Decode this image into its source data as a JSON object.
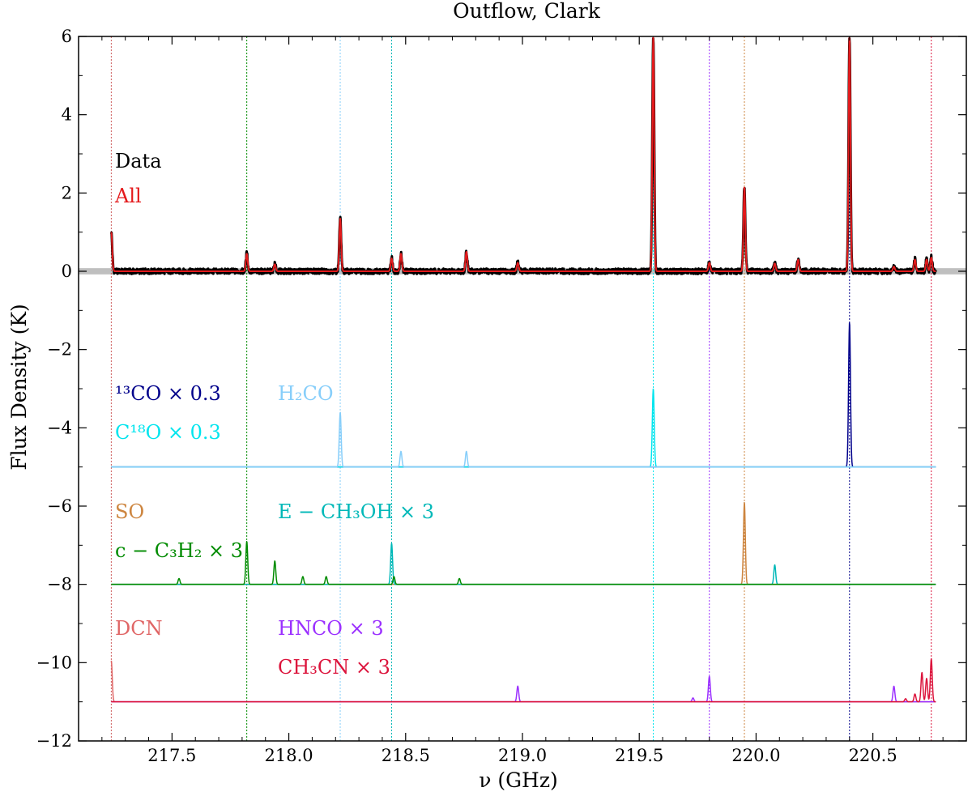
{
  "chart_data": {
    "type": "line",
    "title": "Outflow, Clark",
    "xlabel": "ν (GHz)",
    "ylabel": "Flux Density (K)",
    "xlim": [
      217.1,
      220.9
    ],
    "ylim": [
      -12,
      6
    ],
    "x_ticks": [
      "217.5",
      "218.0",
      "218.5",
      "219.0",
      "219.5",
      "220.0",
      "220.5"
    ],
    "y_ticks": [
      "6",
      "4",
      "2",
      "0",
      "−2",
      "−4",
      "−6",
      "−8",
      "−10",
      "−12"
    ],
    "grid": false,
    "noise_band": {
      "center": 0,
      "halfwidth": 0.08,
      "color": "#bfbfbf"
    },
    "series": [
      {
        "name": "Data",
        "color": "#000000",
        "offset": 0,
        "peaks": [
          [
            217.24,
            1.0
          ],
          [
            217.82,
            0.45
          ],
          [
            217.94,
            0.18
          ],
          [
            218.22,
            1.35
          ],
          [
            218.44,
            0.33
          ],
          [
            218.48,
            0.45
          ],
          [
            218.76,
            0.5
          ],
          [
            218.98,
            0.22
          ],
          [
            219.56,
            6.0
          ],
          [
            219.8,
            0.22
          ],
          [
            219.95,
            2.15
          ],
          [
            220.08,
            0.2
          ],
          [
            220.18,
            0.3
          ],
          [
            220.4,
            6.0
          ],
          [
            220.59,
            0.12
          ],
          [
            220.68,
            0.3
          ],
          [
            220.73,
            0.3
          ],
          [
            220.75,
            0.35
          ]
        ]
      },
      {
        "name": "All",
        "color": "#e41a1c",
        "offset": 0,
        "peaks": [
          [
            217.24,
            1.0
          ],
          [
            217.82,
            0.45
          ],
          [
            217.94,
            0.18
          ],
          [
            218.22,
            1.35
          ],
          [
            218.44,
            0.33
          ],
          [
            218.48,
            0.45
          ],
          [
            218.76,
            0.5
          ],
          [
            218.98,
            0.22
          ],
          [
            219.56,
            6.0
          ],
          [
            219.8,
            0.22
          ],
          [
            219.95,
            2.15
          ],
          [
            220.08,
            0.2
          ],
          [
            220.18,
            0.3
          ],
          [
            220.4,
            6.0
          ],
          [
            220.59,
            0.12
          ],
          [
            220.68,
            0.3
          ],
          [
            220.73,
            0.3
          ],
          [
            220.75,
            0.35
          ]
        ]
      },
      {
        "name": "¹³CO × 0.3",
        "color": "#00008b",
        "offset": -5,
        "peaks": [
          [
            220.4,
            3.7
          ]
        ]
      },
      {
        "name": "C¹⁸O × 0.3",
        "color": "#00e5ee",
        "offset": -5,
        "peaks": [
          [
            219.56,
            2.0
          ]
        ]
      },
      {
        "name": "H₂CO",
        "color": "#87cefa",
        "offset": -5,
        "peaks": [
          [
            218.22,
            1.4
          ],
          [
            218.48,
            0.4
          ],
          [
            218.76,
            0.4
          ]
        ]
      },
      {
        "name": "SO",
        "color": "#cd853f",
        "offset": -8,
        "peaks": [
          [
            219.95,
            2.1
          ]
        ]
      },
      {
        "name": "E − CH₃OH × 3",
        "color": "#00b8b8",
        "offset": -8,
        "peaks": [
          [
            218.44,
            1.05
          ],
          [
            220.08,
            0.5
          ]
        ]
      },
      {
        "name": "c − C₃H₂ × 3",
        "color": "#008b00",
        "offset": -8,
        "peaks": [
          [
            217.53,
            0.15
          ],
          [
            217.82,
            1.1
          ],
          [
            217.94,
            0.6
          ],
          [
            218.06,
            0.2
          ],
          [
            218.16,
            0.2
          ],
          [
            218.45,
            0.2
          ],
          [
            218.73,
            0.15
          ]
        ]
      },
      {
        "name": "DCN",
        "color": "#e06666",
        "offset": -11,
        "peaks": [
          [
            217.24,
            1.05
          ]
        ]
      },
      {
        "name": "HNCO × 3",
        "color": "#9b30ff",
        "offset": -11,
        "peaks": [
          [
            218.98,
            0.4
          ],
          [
            219.73,
            0.1
          ],
          [
            219.8,
            0.65
          ],
          [
            220.59,
            0.4
          ]
        ]
      },
      {
        "name": "CH₃CN × 3",
        "color": "#dc143c",
        "offset": -11,
        "peaks": [
          [
            220.64,
            0.08
          ],
          [
            220.68,
            0.2
          ],
          [
            220.71,
            0.75
          ],
          [
            220.73,
            0.6
          ],
          [
            220.75,
            1.1
          ]
        ]
      }
    ],
    "vertical_lines": [
      {
        "x": 217.24,
        "color": "#cd5c5c"
      },
      {
        "x": 217.82,
        "color": "#008b00"
      },
      {
        "x": 218.22,
        "color": "#87cefa"
      },
      {
        "x": 218.44,
        "color": "#00b8b8"
      },
      {
        "x": 219.56,
        "color": "#00e5ee"
      },
      {
        "x": 219.8,
        "color": "#9b30ff"
      },
      {
        "x": 219.95,
        "color": "#cd853f"
      },
      {
        "x": 220.4,
        "color": "#00008b"
      },
      {
        "x": 220.75,
        "color": "#dc143c"
      }
    ],
    "legend": [
      {
        "series": "Data",
        "color": "#000000"
      },
      {
        "series": "All",
        "color": "#e41a1c"
      },
      {
        "series": "¹³CO × 0.3",
        "color": "#00008b"
      },
      {
        "series": "H₂CO",
        "color": "#87cefa"
      },
      {
        "series": "C¹⁸O × 0.3",
        "color": "#00e5ee"
      },
      {
        "series": "SO",
        "color": "#cd853f"
      },
      {
        "series": "E − CH₃OH × 3",
        "color": "#00b8b8"
      },
      {
        "series": "c − C₃H₂ × 3",
        "color": "#008b00"
      },
      {
        "series": "DCN",
        "color": "#e06666"
      },
      {
        "series": "HNCO × 3",
        "color": "#9b30ff"
      },
      {
        "series": "CH₃CN × 3",
        "color": "#dc143c"
      }
    ]
  }
}
